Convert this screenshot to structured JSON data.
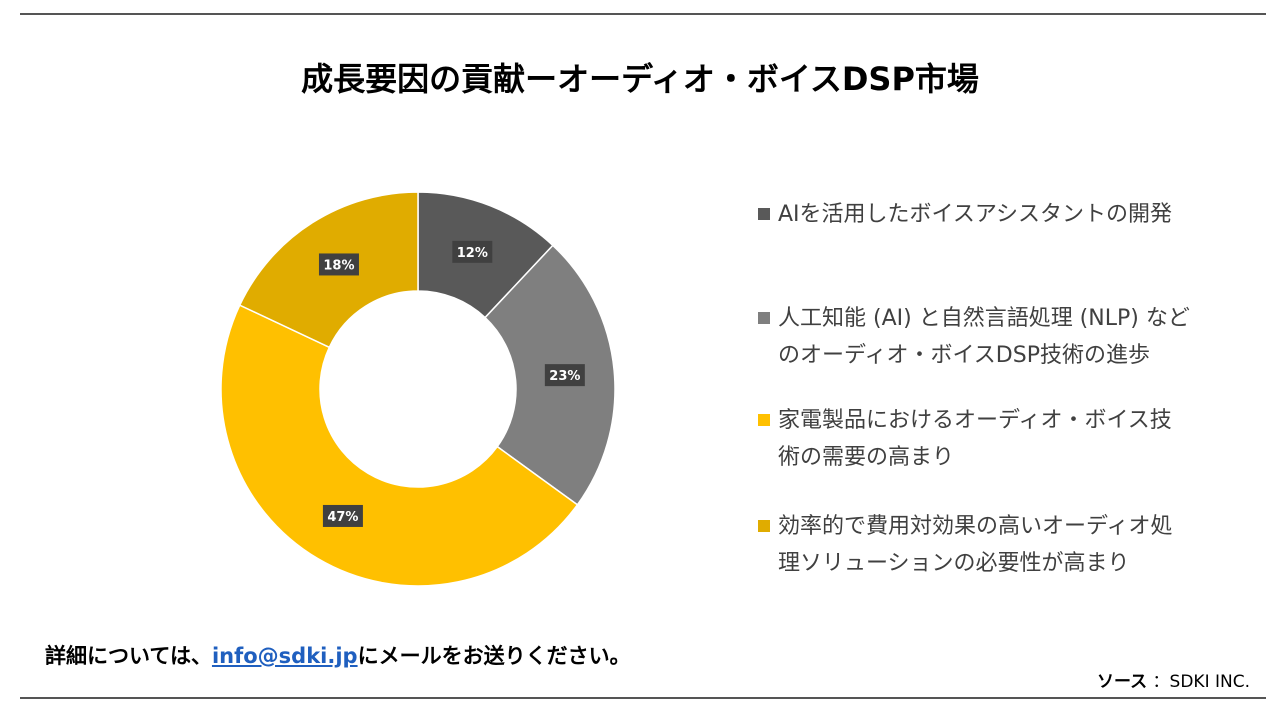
{
  "title": "成長要因の貢献ーオーディオ・ボイスDSP市場",
  "chart_data": {
    "type": "pie",
    "variant": "donut",
    "categories": [
      "AIを活用したボイスアシスタントの開発",
      "人工知能 (AI) と自然言語処理 (NLP) などのオーディオ・ボイスDSP技術の進歩",
      "家電製品におけるオーディオ・ボイス技術の需要の高まり",
      "効率的で費用対効果の高いオーディオ処理ソリューションの必要性が高まり"
    ],
    "values": [
      12,
      23,
      47,
      18
    ],
    "labels": [
      "12%",
      "23%",
      "47%",
      "18%"
    ],
    "colors": [
      "#595959",
      "#7f7f7f",
      "#ffc000",
      "#e0ac00"
    ],
    "legend_placement": "right"
  },
  "legend_lines": [
    [
      "AIを活用したボイスアシスタントの開発"
    ],
    [
      "人工知能 (AI) と自然言語処理 (NLP) など",
      "のオーディオ・ボイスDSP技術の進歩"
    ],
    [
      "家電製品におけるオーディオ・ボイス技",
      "術の需要の高まり"
    ],
    [
      "効率的で費用対効果の高いオーディオ処",
      "理ソリューションの必要性が高まり"
    ]
  ],
  "footer": {
    "contact_prefix": "詳細については、",
    "contact_email": "info@sdki.jp",
    "contact_suffix": "にメールをお送りください。",
    "source_label": "ソース",
    "source_value": "：SDKI INC."
  }
}
